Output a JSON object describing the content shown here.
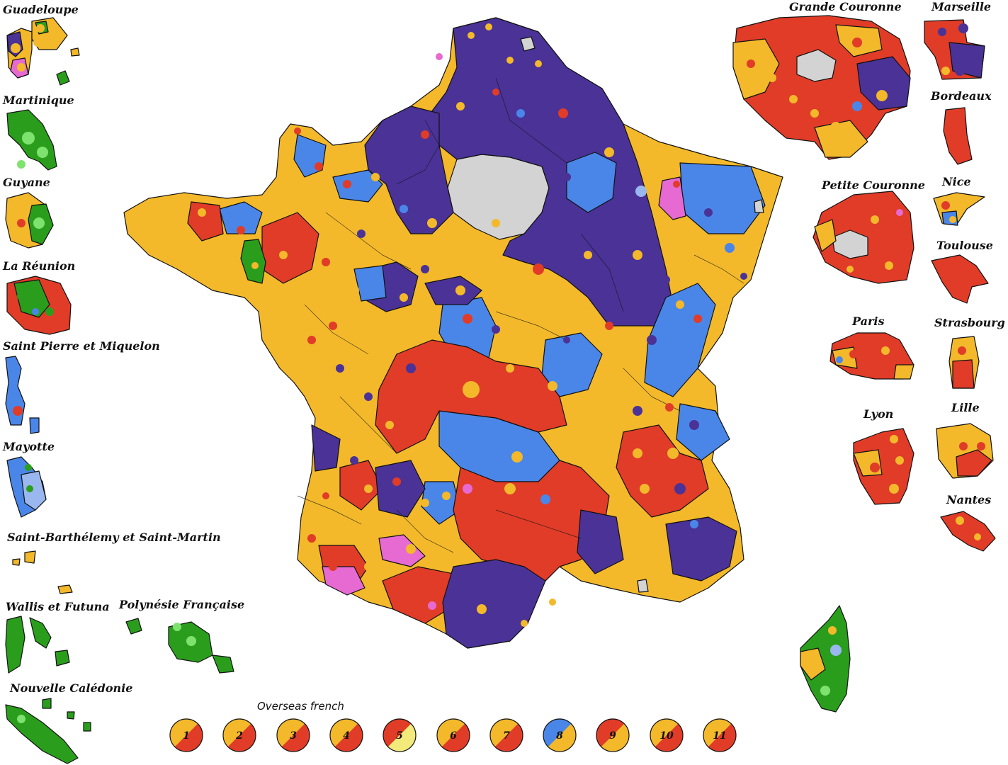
{
  "colors": {
    "red": "#e03c28",
    "orange": "#f3b92b",
    "purple": "#4a3297",
    "blue": "#4a86e8",
    "lightblue": "#9ab8ef",
    "green": "#2a9e1c",
    "pink": "#e66ad2",
    "yellow": "#f2ea7a",
    "grey": "#d3d3d3",
    "border": "#111111"
  },
  "overseas_labels": [
    "Guadeloupe",
    "Martinique",
    "Guyane",
    "La Réunion",
    "Saint Pierre et Miquelon",
    "Mayotte",
    "Saint-Barthélemy et Saint-Martin",
    "Wallis et Futuna",
    "Polynésie Française",
    "Nouvelle Calédonie"
  ],
  "inset_labels": [
    "Grande Couronne",
    "Marseille",
    "Bordeaux",
    "Petite Couronne",
    "Nice",
    "Toulouse",
    "Paris",
    "Strasbourg",
    "Lyon",
    "Lille",
    "Nantes"
  ],
  "legend": {
    "title": "Overseas french",
    "items": [
      {
        "num": "1",
        "a": "orange",
        "b": "red"
      },
      {
        "num": "2",
        "a": "orange",
        "b": "red"
      },
      {
        "num": "3",
        "a": "orange",
        "b": "red"
      },
      {
        "num": "4",
        "a": "orange",
        "b": "red"
      },
      {
        "num": "5",
        "a": "red",
        "b": "yellow"
      },
      {
        "num": "6",
        "a": "orange",
        "b": "red"
      },
      {
        "num": "7",
        "a": "orange",
        "b": "red"
      },
      {
        "num": "8",
        "a": "blue",
        "b": "orange"
      },
      {
        "num": "9",
        "a": "red",
        "b": "orange"
      },
      {
        "num": "10",
        "a": "orange",
        "b": "red"
      },
      {
        "num": "11",
        "a": "orange",
        "b": "red"
      }
    ]
  }
}
